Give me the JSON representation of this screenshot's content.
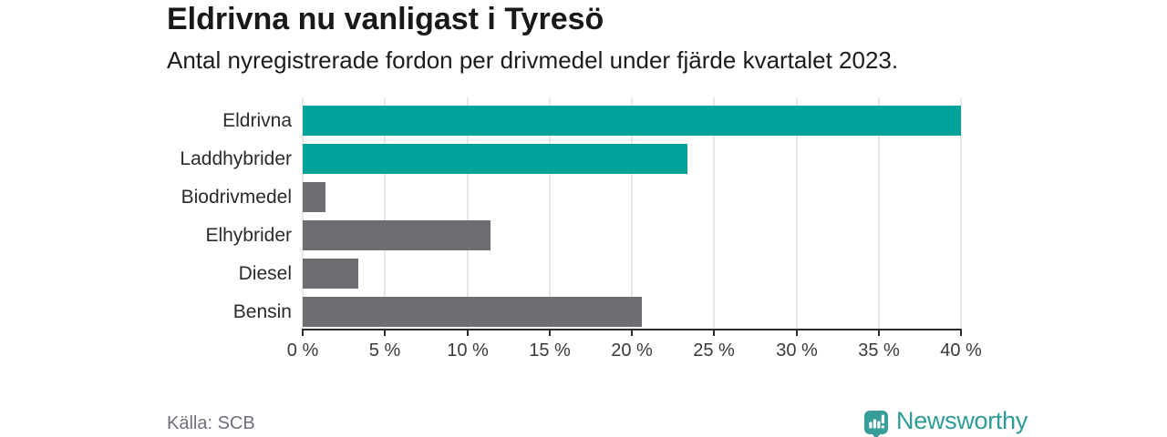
{
  "header": {
    "title": "Eldrivna nu vanligast i Tyresö",
    "subtitle": "Antal nyregistrerade fordon per drivmedel under fjärde kvartalet 2023."
  },
  "chart_data": {
    "type": "bar",
    "orientation": "horizontal",
    "title": "Eldrivna nu vanligast i Tyresö",
    "subtitle": "Antal nyregistrerade fordon per drivmedel under fjärde kvartalet 2023.",
    "categories": [
      "Eldrivna",
      "Laddhybrider",
      "Biodrivmedel",
      "Elhybrider",
      "Diesel",
      "Bensin"
    ],
    "values": [
      40.0,
      23.4,
      1.4,
      11.4,
      3.4,
      20.6
    ],
    "unit": "%",
    "bar_colors": [
      "#00a29a",
      "#00a29a",
      "#6e6d71",
      "#6e6d71",
      "#6e6d71",
      "#6e6d71"
    ],
    "highlight_color": "#00a29a",
    "default_color": "#6e6d71",
    "xlim": [
      0,
      40
    ],
    "x_ticks": [
      0,
      5,
      10,
      15,
      20,
      25,
      30,
      35,
      40
    ],
    "x_tick_labels": [
      "0 %",
      "5 %",
      "10 %",
      "15 %",
      "20 %",
      "25 %",
      "30 %",
      "35 %",
      "40 %"
    ],
    "grid": "vertical",
    "legend": "none"
  },
  "footer": {
    "source": "Källa: SCB",
    "brand_name": "Newsworthy",
    "brand_color": "#2f9b96",
    "brand_icon": "bar-chart-pin-icon",
    "brand_icon_color": "#389e9a"
  }
}
